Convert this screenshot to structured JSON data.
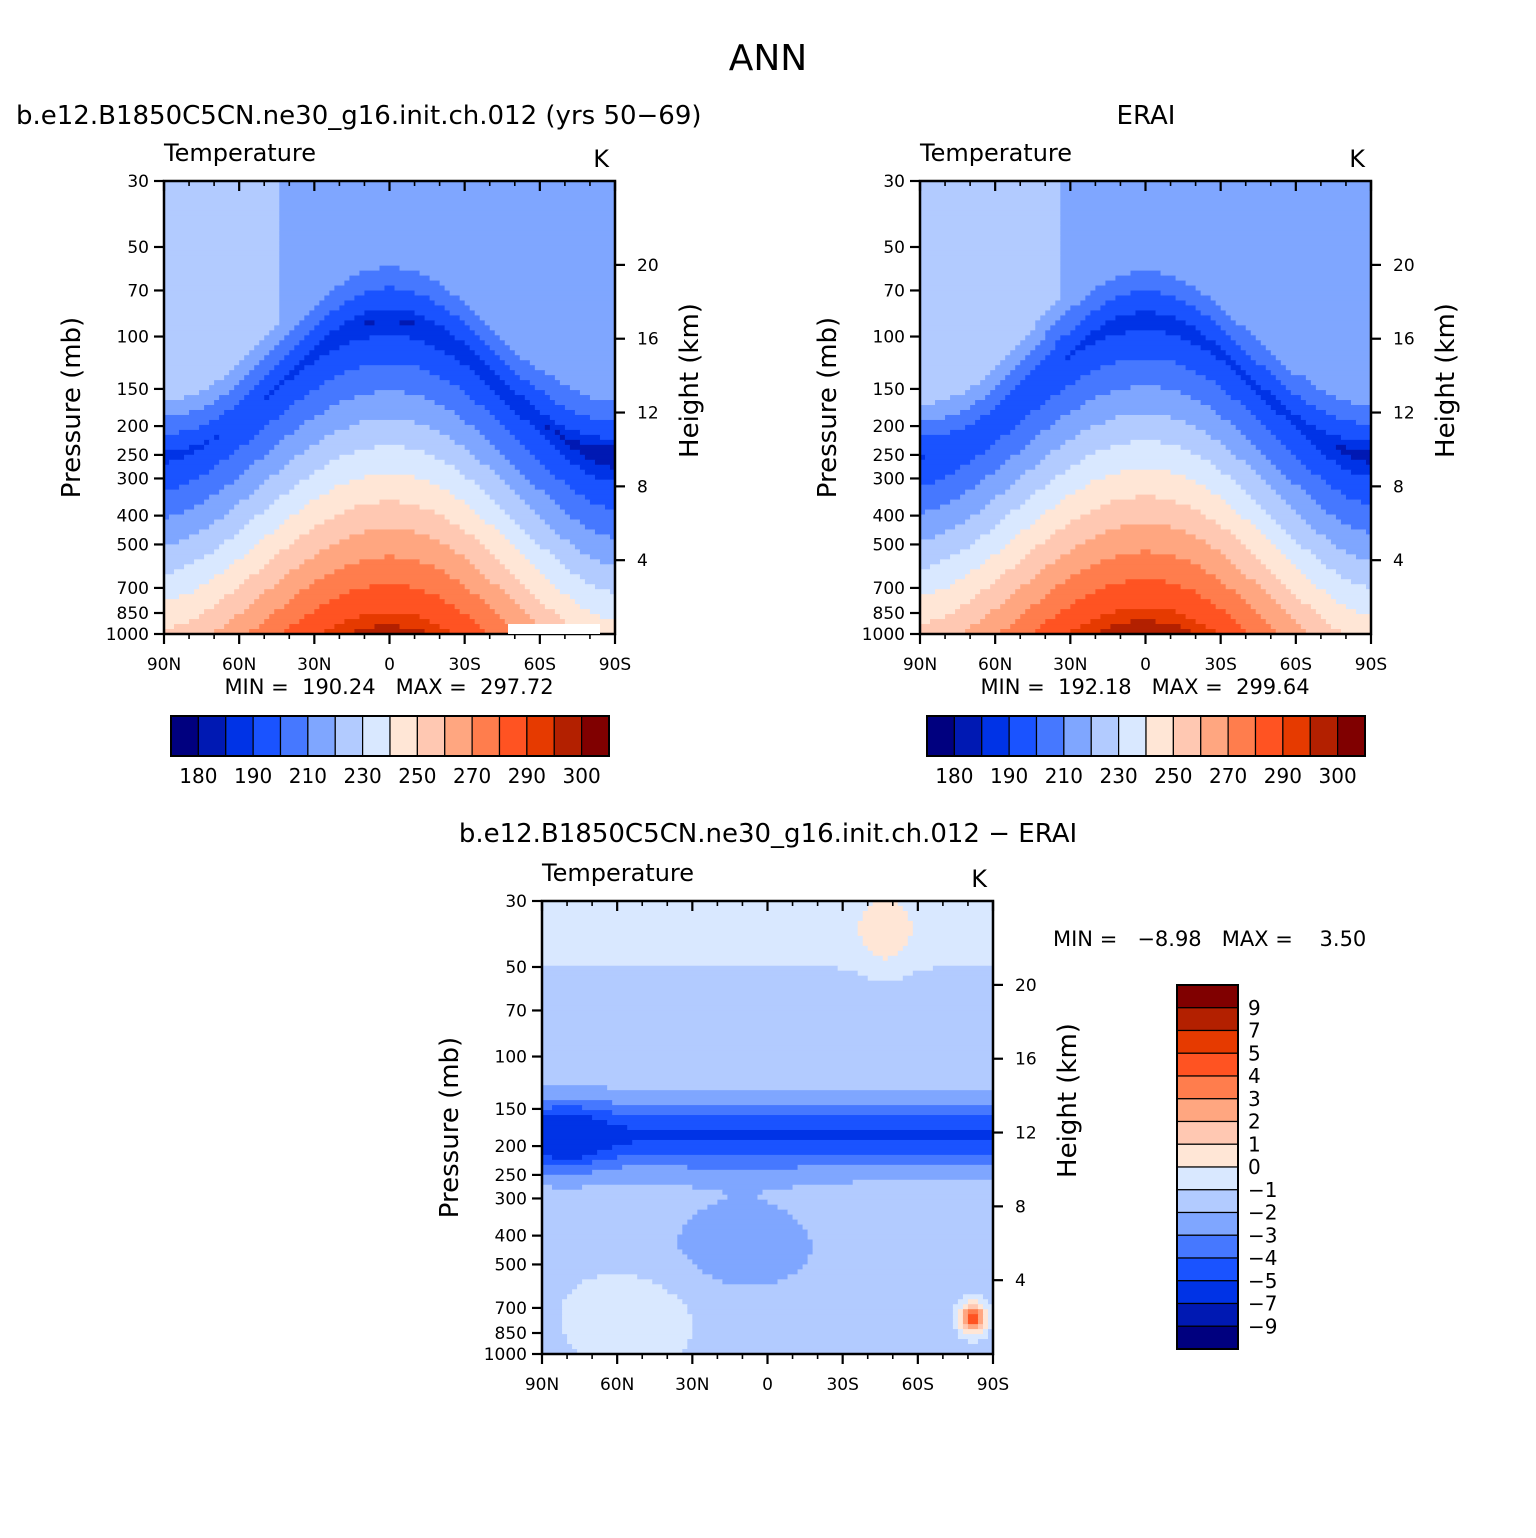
{
  "figure": {
    "title": "ANN"
  },
  "panels": [
    {
      "id": "model",
      "header": "b.e12.B1850C5CN.ne30_g16.init.ch.012 (yrs 50−69)",
      "header_align": "left",
      "variable": "Temperature",
      "units": "K",
      "ylabel": "Pressure (mb)",
      "ylabel_right": "Height (km)",
      "stats": "MIN =  190.24   MAX =  297.72",
      "colorbar_labels": [
        "180",
        "190",
        "210",
        "230",
        "250",
        "270",
        "290",
        "300"
      ],
      "missing_band": true
    },
    {
      "id": "obs",
      "header": "ERAI",
      "header_align": "center",
      "variable": "Temperature",
      "units": "K",
      "ylabel": "Pressure (mb)",
      "ylabel_right": "Height (km)",
      "stats": "MIN =  192.18   MAX =  299.64",
      "colorbar_labels": [
        "180",
        "190",
        "210",
        "230",
        "250",
        "270",
        "290",
        "300"
      ],
      "missing_band": false
    },
    {
      "id": "diff",
      "header": "b.e12.B1850C5CN.ne30_g16.init.ch.012 − ERAI",
      "header_align": "center",
      "variable": "Temperature",
      "units": "K",
      "ylabel": "Pressure (mb)",
      "ylabel_right": "Height (km)",
      "stats": "MIN =   −8.98   MAX =    3.50",
      "colorbar_labels": [
        "9",
        "7",
        "5",
        "4",
        "3",
        "2",
        "1",
        "0",
        "−1",
        "−2",
        "−3",
        "−4",
        "−5",
        "−7",
        "−9"
      ]
    }
  ],
  "chart_data": [
    {
      "type": "heatmap",
      "title": "Temperature",
      "xlabel": "",
      "ylabel": "Pressure (mb)",
      "y2label": "Height (km)",
      "units": "K",
      "x_ticks": [
        "90N",
        "60N",
        "30N",
        "0",
        "30S",
        "60S",
        "90S"
      ],
      "y_ticks": [
        "30",
        "50",
        "70",
        "100",
        "150",
        "200",
        "250",
        "300",
        "400",
        "500",
        "700",
        "850",
        "1000"
      ],
      "y2_ticks": [
        "20",
        "16",
        "12",
        "8",
        "4"
      ],
      "y_scale": "log",
      "ylim": [
        1000,
        30
      ],
      "levels": [
        180,
        185,
        190,
        200,
        210,
        220,
        230,
        240,
        250,
        260,
        270,
        280,
        290,
        295,
        300
      ],
      "colors": [
        "#00007f",
        "#0019b3",
        "#0033e6",
        "#1a53ff",
        "#4678ff",
        "#7fa6ff",
        "#b2cbff",
        "#d9e8ff",
        "#ffe6d6",
        "#ffc8b2",
        "#ffa680",
        "#ff7d4d",
        "#ff5322",
        "#e63a00",
        "#b32000",
        "#800000"
      ],
      "approx_values_at_1000mb": {
        "90N": 252,
        "60N": 270,
        "30N": 287,
        "0": 297,
        "30S": 292,
        "60S": 260,
        "90S": 245
      },
      "min": 190.24,
      "max": 297.72
    },
    {
      "type": "heatmap",
      "title": "Temperature",
      "xlabel": "",
      "ylabel": "Pressure (mb)",
      "y2label": "Height (km)",
      "units": "K",
      "x_ticks": [
        "90N",
        "60N",
        "30N",
        "0",
        "30S",
        "60S",
        "90S"
      ],
      "y_ticks": [
        "30",
        "50",
        "70",
        "100",
        "150",
        "200",
        "250",
        "300",
        "400",
        "500",
        "700",
        "850",
        "1000"
      ],
      "y2_ticks": [
        "20",
        "16",
        "12",
        "8",
        "4"
      ],
      "y_scale": "log",
      "ylim": [
        1000,
        30
      ],
      "levels": [
        180,
        185,
        190,
        200,
        210,
        220,
        230,
        240,
        250,
        260,
        270,
        280,
        290,
        295,
        300
      ],
      "min": 192.18,
      "max": 299.64
    },
    {
      "type": "heatmap",
      "title": "Temperature",
      "xlabel": "",
      "ylabel": "Pressure (mb)",
      "y2label": "Height (km)",
      "units": "K",
      "x_ticks": [
        "90N",
        "60N",
        "30N",
        "0",
        "30S",
        "60S",
        "90S"
      ],
      "y_ticks": [
        "30",
        "50",
        "70",
        "100",
        "150",
        "200",
        "250",
        "300",
        "400",
        "500",
        "700",
        "850",
        "1000"
      ],
      "y2_ticks": [
        "20",
        "16",
        "12",
        "8",
        "4"
      ],
      "y_scale": "log",
      "ylim": [
        1000,
        30
      ],
      "levels": [
        -9,
        -7,
        -5,
        -4,
        -3,
        -2,
        -1,
        0,
        1,
        2,
        3,
        4,
        5,
        7,
        9
      ],
      "colors": [
        "#00007f",
        "#0019b3",
        "#0033e6",
        "#1a53ff",
        "#4678ff",
        "#7fa6ff",
        "#b2cbff",
        "#d9e8ff",
        "#ffe6d6",
        "#ffc8b2",
        "#ffa680",
        "#ff7d4d",
        "#ff5322",
        "#e63a00",
        "#b32000",
        "#800000"
      ],
      "approx_values_by_level": {
        "30": -0.5,
        "70": -2.2,
        "150": -4.2,
        "200": -5.5,
        "300": -3.5,
        "500": -2.5,
        "850": -1.8
      },
      "min": -8.98,
      "max": 3.5
    }
  ]
}
